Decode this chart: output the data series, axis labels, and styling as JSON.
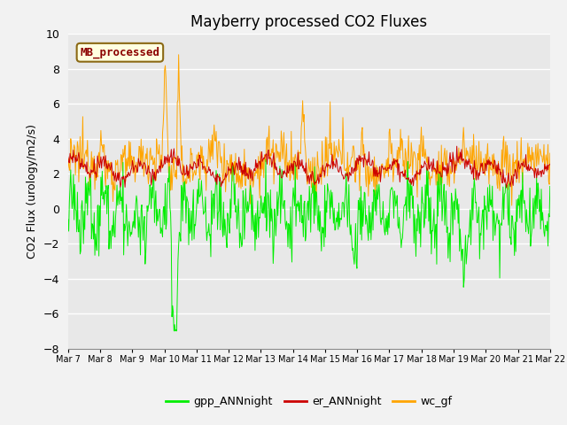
{
  "title": "Mayberry processed CO2 Fluxes",
  "ylabel": "CO2 Flux (urology/m2/s)",
  "ylim": [
    -8,
    10
  ],
  "yticks": [
    -8,
    -6,
    -4,
    -2,
    0,
    2,
    4,
    6,
    8,
    10
  ],
  "xlabel_dates": [
    "Mar 7",
    "Mar 8",
    "Mar 9",
    "Mar 10",
    "Mar 11",
    "Mar 12",
    "Mar 13",
    "Mar 14",
    "Mar 15",
    "Mar 16",
    "Mar 17",
    "Mar 18",
    "Mar 19",
    "Mar 20",
    "Mar 21",
    "Mar 22"
  ],
  "legend_label": "MB_processed",
  "legend_label_color": "#8B0000",
  "legend_box_facecolor": "#FFFFE0",
  "legend_box_edgecolor": "#8B6914",
  "colors": {
    "gpp_ANNnight": "#00EE00",
    "er_ANNnight": "#CC0000",
    "wc_gf": "#FFA500"
  },
  "axes_facecolor": "#E8E8E8",
  "fig_facecolor": "#F2F2F2",
  "grid_color": "#FFFFFF",
  "n_points": 720,
  "seed": 12345
}
